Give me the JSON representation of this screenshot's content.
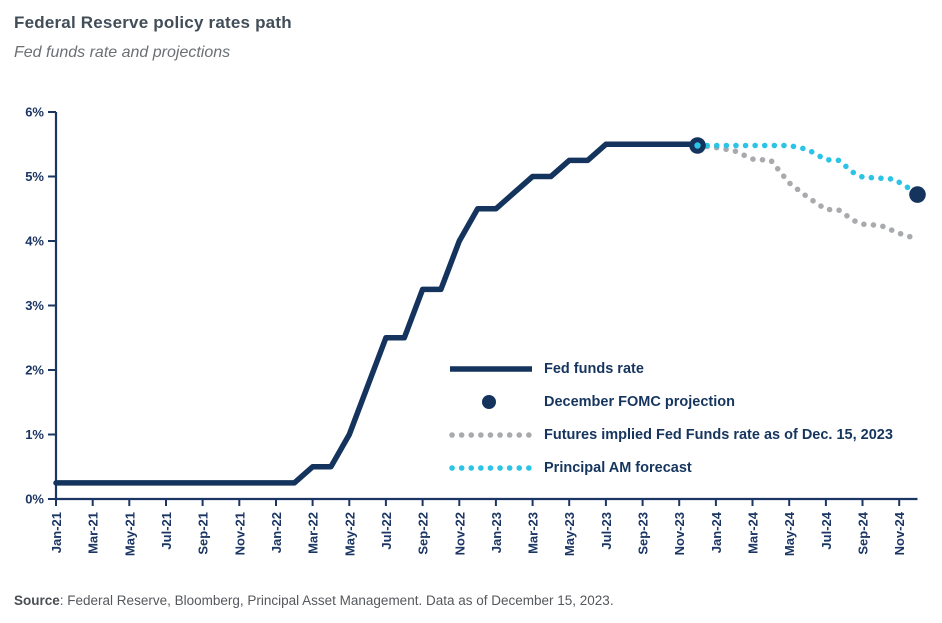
{
  "page": {
    "title": "Federal Reserve policy rates path",
    "subtitle": "Fed funds rate and projections",
    "source_label": "Source",
    "source_rest": ": Federal Reserve, Bloomberg, Principal Asset Management. Data as of December 15, 2023."
  },
  "colors": {
    "navy": "#14345e",
    "cyan": "#2bc4e7",
    "gray": "#a8aaad",
    "axis": "#1c3664"
  },
  "legend": [
    {
      "label": "Fed funds rate",
      "type": "solid-line"
    },
    {
      "label": "December FOMC projection",
      "type": "dot"
    },
    {
      "label": "Futures implied Fed Funds rate as of Dec. 15, 2023",
      "type": "dotted-gray"
    },
    {
      "label": "Principal AM forecast",
      "type": "dotted-cyan"
    }
  ],
  "chart_data": {
    "type": "line",
    "title": "Federal Reserve policy rates path",
    "subtitle": "Fed funds rate and projections",
    "xlabel": "",
    "ylabel": "",
    "units": "percent",
    "ylim": [
      0,
      6
    ],
    "yticks": [
      0,
      1,
      2,
      3,
      4,
      5,
      6
    ],
    "ytick_suffix": "%",
    "grid": false,
    "legend_position": "inside-right-middle",
    "x_axis_note": "months Jan-2021 (m=0) through Dec-2024 (m=47), tick labels every 2 months, rotated 90°",
    "x_tick_labels": [
      "Jan-21",
      "Mar-21",
      "May-21",
      "Jul-21",
      "Sep-21",
      "Nov-21",
      "Jan-22",
      "Mar-22",
      "May-22",
      "Jul-22",
      "Sep-22",
      "Nov-22",
      "Jan-23",
      "Mar-23",
      "May-23",
      "Jul-23",
      "Sep-23",
      "Nov-23",
      "Jan-24",
      "Mar-24",
      "May-24",
      "Jul-24",
      "Sep-24",
      "Nov-24"
    ],
    "series": [
      {
        "name": "Fed funds rate",
        "style": "solid",
        "color_key": "navy",
        "points": [
          [
            0,
            0.25
          ],
          [
            13,
            0.25
          ],
          [
            14,
            0.5
          ],
          [
            15,
            0.5
          ],
          [
            16,
            1.0
          ],
          [
            17,
            1.75
          ],
          [
            18,
            2.5
          ],
          [
            19,
            2.5
          ],
          [
            20,
            3.25
          ],
          [
            21,
            3.25
          ],
          [
            22,
            4.0
          ],
          [
            23,
            4.5
          ],
          [
            24,
            4.5
          ],
          [
            25,
            4.75
          ],
          [
            26,
            5.0
          ],
          [
            27,
            5.0
          ],
          [
            28,
            5.25
          ],
          [
            29,
            5.25
          ],
          [
            30,
            5.5
          ],
          [
            35,
            5.5
          ]
        ]
      },
      {
        "name": "Futures implied Fed Funds rate as of Dec. 15, 2023",
        "style": "dotted",
        "color_key": "gray",
        "points": [
          [
            35,
            5.48
          ],
          [
            36,
            5.45
          ],
          [
            37,
            5.4
          ],
          [
            38,
            5.27
          ],
          [
            39,
            5.25
          ],
          [
            40,
            4.9
          ],
          [
            41,
            4.68
          ],
          [
            42,
            4.49
          ],
          [
            42.7,
            4.48
          ],
          [
            43.5,
            4.32
          ],
          [
            44,
            4.26
          ],
          [
            45,
            4.24
          ],
          [
            46,
            4.12
          ],
          [
            47,
            4.03
          ]
        ]
      },
      {
        "name": "Principal AM forecast",
        "style": "dotted",
        "color_key": "cyan",
        "points": [
          [
            35,
            5.48
          ],
          [
            40,
            5.48
          ],
          [
            41,
            5.42
          ],
          [
            42,
            5.26
          ],
          [
            42.7,
            5.25
          ],
          [
            43.5,
            5.06
          ],
          [
            44,
            4.99
          ],
          [
            45.7,
            4.96
          ],
          [
            46.3,
            4.86
          ],
          [
            47,
            4.73
          ]
        ]
      },
      {
        "name": "December FOMC projection",
        "style": "dots",
        "color_key": "navy",
        "points": [
          [
            35,
            5.48
          ],
          [
            47,
            4.72
          ]
        ]
      }
    ]
  }
}
